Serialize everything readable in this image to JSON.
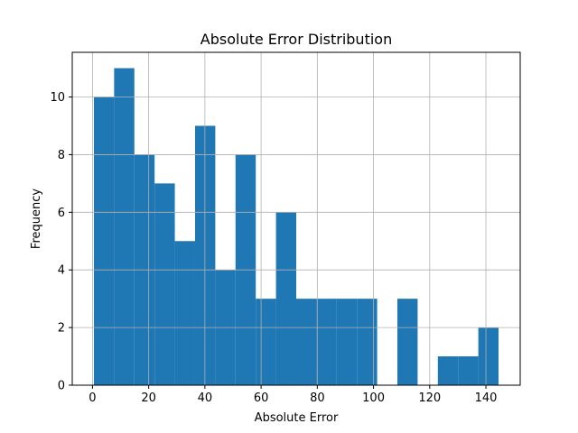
{
  "chart_data": {
    "type": "bar",
    "title": "Absolute Error Distribution",
    "xlabel": "Absolute Error",
    "ylabel": "Frequency",
    "bin_edges": [
      0.5,
      7.7,
      14.9,
      22.1,
      29.3,
      36.5,
      43.7,
      50.9,
      58.1,
      65.3,
      72.5,
      79.7,
      86.9,
      94.1,
      101.3,
      108.5,
      115.7,
      122.9,
      130.1,
      137.3,
      144.5
    ],
    "values": [
      10,
      11,
      8,
      7,
      5,
      9,
      4,
      8,
      3,
      6,
      3,
      3,
      3,
      3,
      0,
      3,
      0,
      1,
      1,
      2
    ],
    "xlim": [
      -7.2,
      152.2
    ],
    "ylim": [
      0,
      11.55
    ],
    "xticks": [
      0,
      20,
      40,
      60,
      80,
      100,
      120,
      140
    ],
    "yticks": [
      0,
      2,
      4,
      6,
      8,
      10
    ],
    "grid": true,
    "bar_color": "#1f77b4",
    "grid_color": "#b0b0b0"
  }
}
